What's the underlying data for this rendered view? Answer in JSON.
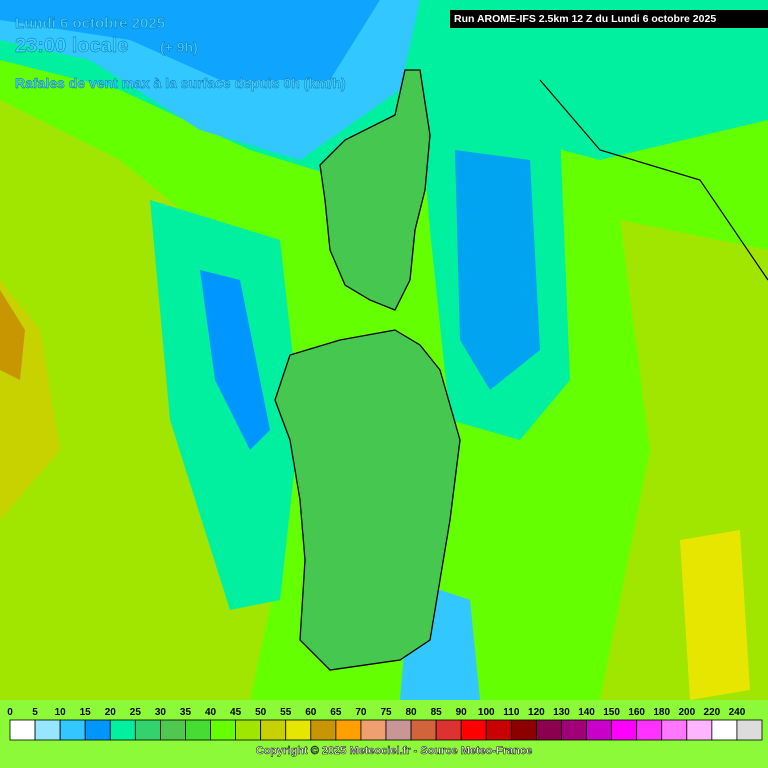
{
  "header": {
    "date": "Lundi 6 octobre 2025",
    "time": "23:00 locale",
    "offset": "(+ 9h)",
    "subtitle": "Rafales de vent max à la surface depuis 0h (km/h)",
    "run": "Run AROME-IFS 2.5km 12 Z du Lundi 6 octobre 2025"
  },
  "legend": {
    "stops": [
      {
        "label": 0,
        "color": "#ffffff"
      },
      {
        "label": 5,
        "color": "#96e6ff"
      },
      {
        "label": 10,
        "color": "#32c8ff"
      },
      {
        "label": 15,
        "color": "#0096ff"
      },
      {
        "label": 20,
        "color": "#00f0a0"
      },
      {
        "label": 25,
        "color": "#32d26e"
      },
      {
        "label": 30,
        "color": "#50c850"
      },
      {
        "label": 35,
        "color": "#46dc32"
      },
      {
        "label": 40,
        "color": "#64ff00"
      },
      {
        "label": 45,
        "color": "#a0e600"
      },
      {
        "label": 50,
        "color": "#c8d200"
      },
      {
        "label": 55,
        "color": "#e6e600"
      },
      {
        "label": 60,
        "color": "#c89600"
      },
      {
        "label": 65,
        "color": "#ffa000"
      },
      {
        "label": 70,
        "color": "#f0a070"
      },
      {
        "label": 75,
        "color": "#c89696"
      },
      {
        "label": 80,
        "color": "#d2643c"
      },
      {
        "label": 85,
        "color": "#dc3232"
      },
      {
        "label": 90,
        "color": "#ff0000"
      },
      {
        "label": 100,
        "color": "#c80000"
      },
      {
        "label": 110,
        "color": "#8c0000"
      },
      {
        "label": 120,
        "color": "#8c0050"
      },
      {
        "label": 130,
        "color": "#a00078"
      },
      {
        "label": 140,
        "color": "#c800c8"
      },
      {
        "label": 150,
        "color": "#ff00ff"
      },
      {
        "label": 160,
        "color": "#ff32ff"
      },
      {
        "label": 180,
        "color": "#ff78ff"
      },
      {
        "label": 200,
        "color": "#ffb4ff"
      },
      {
        "label": 220,
        "color": "#ffffff"
      },
      {
        "label": 240,
        "color": "#dcdcdc"
      }
    ]
  },
  "footer": {
    "copyright": "Copyright © 2025 Meteociel.fr - Source Meteo-France"
  }
}
